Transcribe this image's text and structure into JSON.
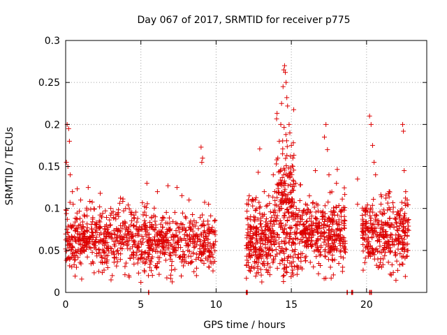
{
  "chart_data": {
    "type": "scatter",
    "title": "Day 067 of 2017, SRMTID for receiver p775",
    "xlabel": "GPS time / hours",
    "ylabel": "SRMTID / TECUs",
    "xlim": [
      0,
      24
    ],
    "ylim": [
      0,
      0.3
    ],
    "xticks": [
      0,
      5,
      10,
      15,
      20
    ],
    "xtick_labels": [
      "0",
      "5",
      "10",
      "15",
      "20"
    ],
    "yticks": [
      0,
      0.05,
      0.1,
      0.15,
      0.2,
      0.25,
      0.3
    ],
    "ytick_labels": [
      "0",
      "0.05",
      "0.1",
      "0.15",
      "0.2",
      "0.25",
      "0.3"
    ],
    "grid": true,
    "marker": "+",
    "marker_color": "#dd0000",
    "series": [
      {
        "name": "SRMTID p775",
        "segments": [
          {
            "x_start": 0.0,
            "x_end": 10.0,
            "y_center": 0.062,
            "y_spread": 0.018,
            "count": 900
          },
          {
            "x_start": 12.0,
            "x_end": 14.0,
            "y_center": 0.065,
            "y_spread": 0.022,
            "count": 260
          },
          {
            "x_start": 14.0,
            "x_end": 15.2,
            "y_center": 0.1,
            "y_spread": 0.045,
            "count": 220
          },
          {
            "x_start": 15.2,
            "x_end": 18.6,
            "y_center": 0.07,
            "y_spread": 0.02,
            "count": 380
          },
          {
            "x_start": 19.7,
            "x_end": 22.8,
            "y_center": 0.07,
            "y_spread": 0.02,
            "count": 340
          }
        ],
        "points": [
          [
            0.1,
            0.2
          ],
          [
            0.2,
            0.195
          ],
          [
            0.25,
            0.18
          ],
          [
            0.05,
            0.155
          ],
          [
            0.15,
            0.15
          ],
          [
            0.3,
            0.14
          ],
          [
            0.45,
            0.12
          ],
          [
            1.5,
            0.125
          ],
          [
            2.3,
            0.118
          ],
          [
            5.4,
            0.13
          ],
          [
            6.1,
            0.12
          ],
          [
            6.8,
            0.127
          ],
          [
            7.4,
            0.125
          ],
          [
            9.0,
            0.173
          ],
          [
            9.1,
            0.16
          ],
          [
            9.05,
            0.155
          ],
          [
            12.2,
            0.115
          ],
          [
            12.6,
            0.11
          ],
          [
            12.8,
            0.143
          ],
          [
            12.9,
            0.171
          ],
          [
            13.2,
            0.12
          ],
          [
            13.5,
            0.115
          ],
          [
            13.8,
            0.14
          ],
          [
            14.1,
            0.16
          ],
          [
            14.2,
            0.18
          ],
          [
            14.3,
            0.2
          ],
          [
            14.35,
            0.225
          ],
          [
            14.45,
            0.245
          ],
          [
            14.5,
            0.265
          ],
          [
            14.55,
            0.27
          ],
          [
            14.6,
            0.262
          ],
          [
            14.65,
            0.25
          ],
          [
            14.7,
            0.232
          ],
          [
            14.75,
            0.222
          ],
          [
            14.85,
            0.2
          ],
          [
            14.9,
            0.19
          ],
          [
            15.0,
            0.175
          ],
          [
            15.1,
            0.16
          ],
          [
            15.3,
            0.13
          ],
          [
            16.2,
            0.115
          ],
          [
            16.6,
            0.145
          ],
          [
            17.2,
            0.185
          ],
          [
            17.3,
            0.2
          ],
          [
            17.4,
            0.17
          ],
          [
            17.5,
            0.14
          ],
          [
            18.0,
            0.13
          ],
          [
            19.4,
            0.135
          ],
          [
            19.4,
            0.105
          ],
          [
            20.2,
            0.21
          ],
          [
            20.3,
            0.2
          ],
          [
            20.4,
            0.175
          ],
          [
            20.5,
            0.155
          ],
          [
            20.6,
            0.14
          ],
          [
            21.5,
            0.12
          ],
          [
            22.4,
            0.2
          ],
          [
            22.45,
            0.192
          ],
          [
            22.5,
            0.145
          ],
          [
            22.6,
            0.12
          ],
          [
            22.7,
            0.11
          ],
          [
            0.5,
            0.105
          ],
          [
            1.0,
            0.11
          ],
          [
            3.0,
            0.1
          ],
          [
            3.5,
            0.095
          ],
          [
            4.4,
            0.095
          ],
          [
            8.2,
            0.11
          ],
          [
            9.5,
            0.105
          ],
          [
            2.2,
            0.025
          ],
          [
            3.1,
            0.02
          ],
          [
            4.2,
            0.02
          ],
          [
            5.0,
            0.012
          ],
          [
            5.5,
            0.02
          ],
          [
            0.1,
            0.04
          ],
          [
            9.8,
            0.035
          ],
          [
            14.9,
            0.035
          ],
          [
            15.5,
            0.03
          ],
          [
            17.6,
            0.03
          ],
          [
            18.4,
            0.025
          ],
          [
            21.0,
            0.03
          ],
          [
            22.7,
            0.05
          ]
        ],
        "zero_points": [
          5.5,
          12.0,
          12.05,
          18.7,
          19.0,
          19.05,
          20.2,
          20.3
        ]
      }
    ]
  }
}
